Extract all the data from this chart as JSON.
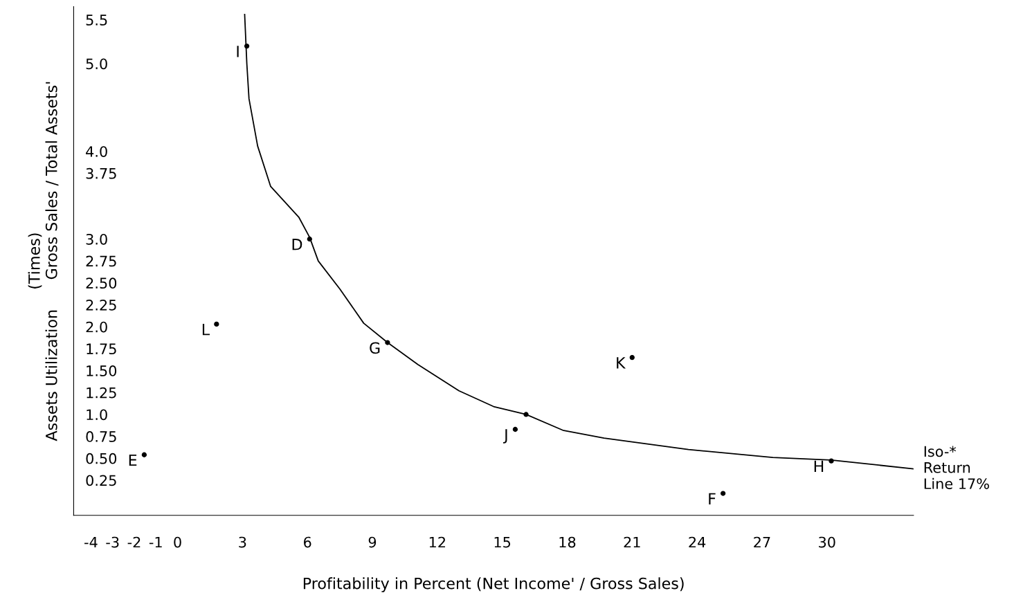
{
  "chart_data": {
    "type": "scatter",
    "xlabel": "Profitability in Percent (Net Income' / Gross Sales)",
    "ylabel": "(Times)\nAssets Utilization      Gross Sales / Total Assets'",
    "xlim": [
      -4.8,
      34
    ],
    "ylim": [
      -0.15,
      5.65
    ],
    "xticks": [
      -4,
      -3,
      -2,
      -1,
      0,
      3,
      6,
      9,
      12,
      15,
      18,
      21,
      24,
      27,
      30
    ],
    "yticks": [
      5.5,
      {
        "value": 5.0,
        "label": "5.0"
      },
      {
        "value": 4.0,
        "label": "4.0"
      },
      3.75,
      {
        "value": 3.0,
        "label": "3.0"
      },
      2.75,
      {
        "value": 2.5,
        "label": "2.50"
      },
      2.25,
      {
        "value": 2.0,
        "label": "2.0"
      },
      1.75,
      {
        "value": 1.5,
        "label": "1.50"
      },
      1.25,
      {
        "value": 1.0,
        "label": "1.0"
      },
      0.75,
      {
        "value": 0.5,
        "label": "0.50"
      },
      0.25
    ],
    "grid": false,
    "series": [
      {
        "type": "line",
        "color": "#000000",
        "marker": "none",
        "x": [
          3.1,
          3.2,
          3.3,
          3.7,
          4.3,
          5.6,
          6.1,
          6.5,
          7.5,
          8.6,
          9.7,
          11.1,
          13.0,
          14.6,
          16.1,
          17.8,
          19.7,
          23.6,
          27.5,
          30.2,
          34.0
        ],
        "values": [
          5.56,
          5.0,
          4.6,
          4.06,
          3.6,
          3.25,
          3.02,
          2.75,
          2.43,
          2.04,
          1.82,
          1.57,
          1.27,
          1.09,
          1.0,
          0.82,
          0.73,
          0.6,
          0.51,
          0.48,
          0.38
        ]
      },
      {
        "color": "#000000",
        "marker": "circle",
        "x": [
          3.2,
          6.1,
          9.7,
          1.8,
          21.0,
          16.1,
          15.6,
          -1.54,
          30.2,
          25.2
        ],
        "values": [
          5.2,
          3.0,
          1.82,
          2.03,
          1.65,
          1.0,
          0.83,
          0.54,
          0.47,
          0.1
        ]
      }
    ],
    "annotations": [
      {
        "text": "I",
        "x": 3.2,
        "y": 5.2
      },
      {
        "text": "D",
        "x": 6.1,
        "y": 3.0
      },
      {
        "text": "G",
        "x": 9.7,
        "y": 1.82
      },
      {
        "text": "L",
        "x": 1.8,
        "y": 2.03
      },
      {
        "text": "K",
        "x": 21.0,
        "y": 1.65
      },
      {
        "text": "J",
        "x": 15.6,
        "y": 0.83
      },
      {
        "text": "E",
        "x": -1.54,
        "y": 0.54
      },
      {
        "text": "H",
        "x": 30.2,
        "y": 0.47
      },
      {
        "text": "F",
        "x": 25.2,
        "y": 0.1
      },
      {
        "text": "Iso-*\nReturn\nLine 17%",
        "x": 34.0,
        "y": 0.38
      }
    ]
  }
}
